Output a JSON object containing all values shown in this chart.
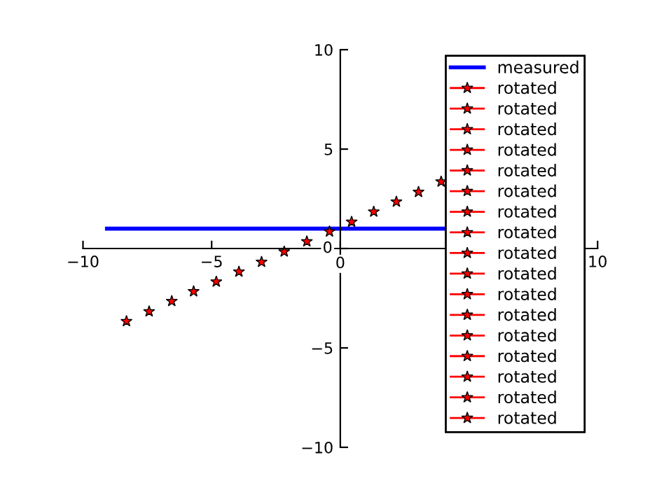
{
  "chart_data": {
    "type": "line",
    "xlim": [
      -10,
      10
    ],
    "ylim": [
      -10,
      10
    ],
    "xticks": [
      -10,
      -5,
      0,
      10
    ],
    "yticks": [
      -10,
      -5,
      0,
      5,
      10
    ],
    "grid": false,
    "legend": "right",
    "line_style": "solid",
    "series": [
      {
        "name": "measured",
        "color": "#0000ff",
        "marker": "none",
        "x": [
          -9.07,
          4.0
        ],
        "values": [
          1.0,
          1.0
        ]
      },
      {
        "name": "rotated",
        "color": "#ff0000",
        "marker": "star",
        "x": [
          -8.31
        ],
        "values": [
          -3.66
        ]
      },
      {
        "name": "rotated",
        "color": "#ff0000",
        "marker": "star",
        "x": [
          -7.43
        ],
        "values": [
          -3.17
        ]
      },
      {
        "name": "rotated",
        "color": "#ff0000",
        "marker": "star",
        "x": [
          -6.55
        ],
        "values": [
          -2.65
        ]
      },
      {
        "name": "rotated",
        "color": "#ff0000",
        "marker": "star",
        "x": [
          -5.7
        ],
        "values": [
          -2.16
        ]
      },
      {
        "name": "rotated",
        "color": "#ff0000",
        "marker": "star",
        "x": [
          -4.82
        ],
        "values": [
          -1.67
        ]
      },
      {
        "name": "rotated",
        "color": "#ff0000",
        "marker": "star",
        "x": [
          -3.94
        ],
        "values": [
          -1.17
        ]
      },
      {
        "name": "rotated",
        "color": "#ff0000",
        "marker": "star",
        "x": [
          -3.06
        ],
        "values": [
          -0.68
        ]
      },
      {
        "name": "rotated",
        "color": "#ff0000",
        "marker": "star",
        "x": [
          -2.18
        ],
        "values": [
          -0.16
        ]
      },
      {
        "name": "rotated",
        "color": "#ff0000",
        "marker": "star",
        "x": [
          -1.3
        ],
        "values": [
          0.35
        ]
      },
      {
        "name": "rotated",
        "color": "#ff0000",
        "marker": "star",
        "x": [
          -0.42
        ],
        "values": [
          0.85
        ]
      },
      {
        "name": "rotated",
        "color": "#ff0000",
        "marker": "star",
        "x": [
          0.44
        ],
        "values": [
          1.34
        ]
      },
      {
        "name": "rotated",
        "color": "#ff0000",
        "marker": "star",
        "x": [
          1.3
        ],
        "values": [
          1.85
        ]
      },
      {
        "name": "rotated",
        "color": "#ff0000",
        "marker": "star",
        "x": [
          2.18
        ],
        "values": [
          2.35
        ]
      },
      {
        "name": "rotated",
        "color": "#ff0000",
        "marker": "star",
        "x": [
          3.04
        ],
        "values": [
          2.84
        ]
      },
      {
        "name": "rotated",
        "color": "#ff0000",
        "marker": "star",
        "x": [
          3.92
        ],
        "values": [
          3.36
        ]
      },
      {
        "name": "rotated",
        "color": "#ff0000",
        "marker": "star",
        "x": [
          null
        ],
        "values": [
          null
        ]
      },
      {
        "name": "rotated",
        "color": "#ff0000",
        "marker": "star",
        "x": [
          null
        ],
        "values": [
          null
        ]
      }
    ]
  }
}
